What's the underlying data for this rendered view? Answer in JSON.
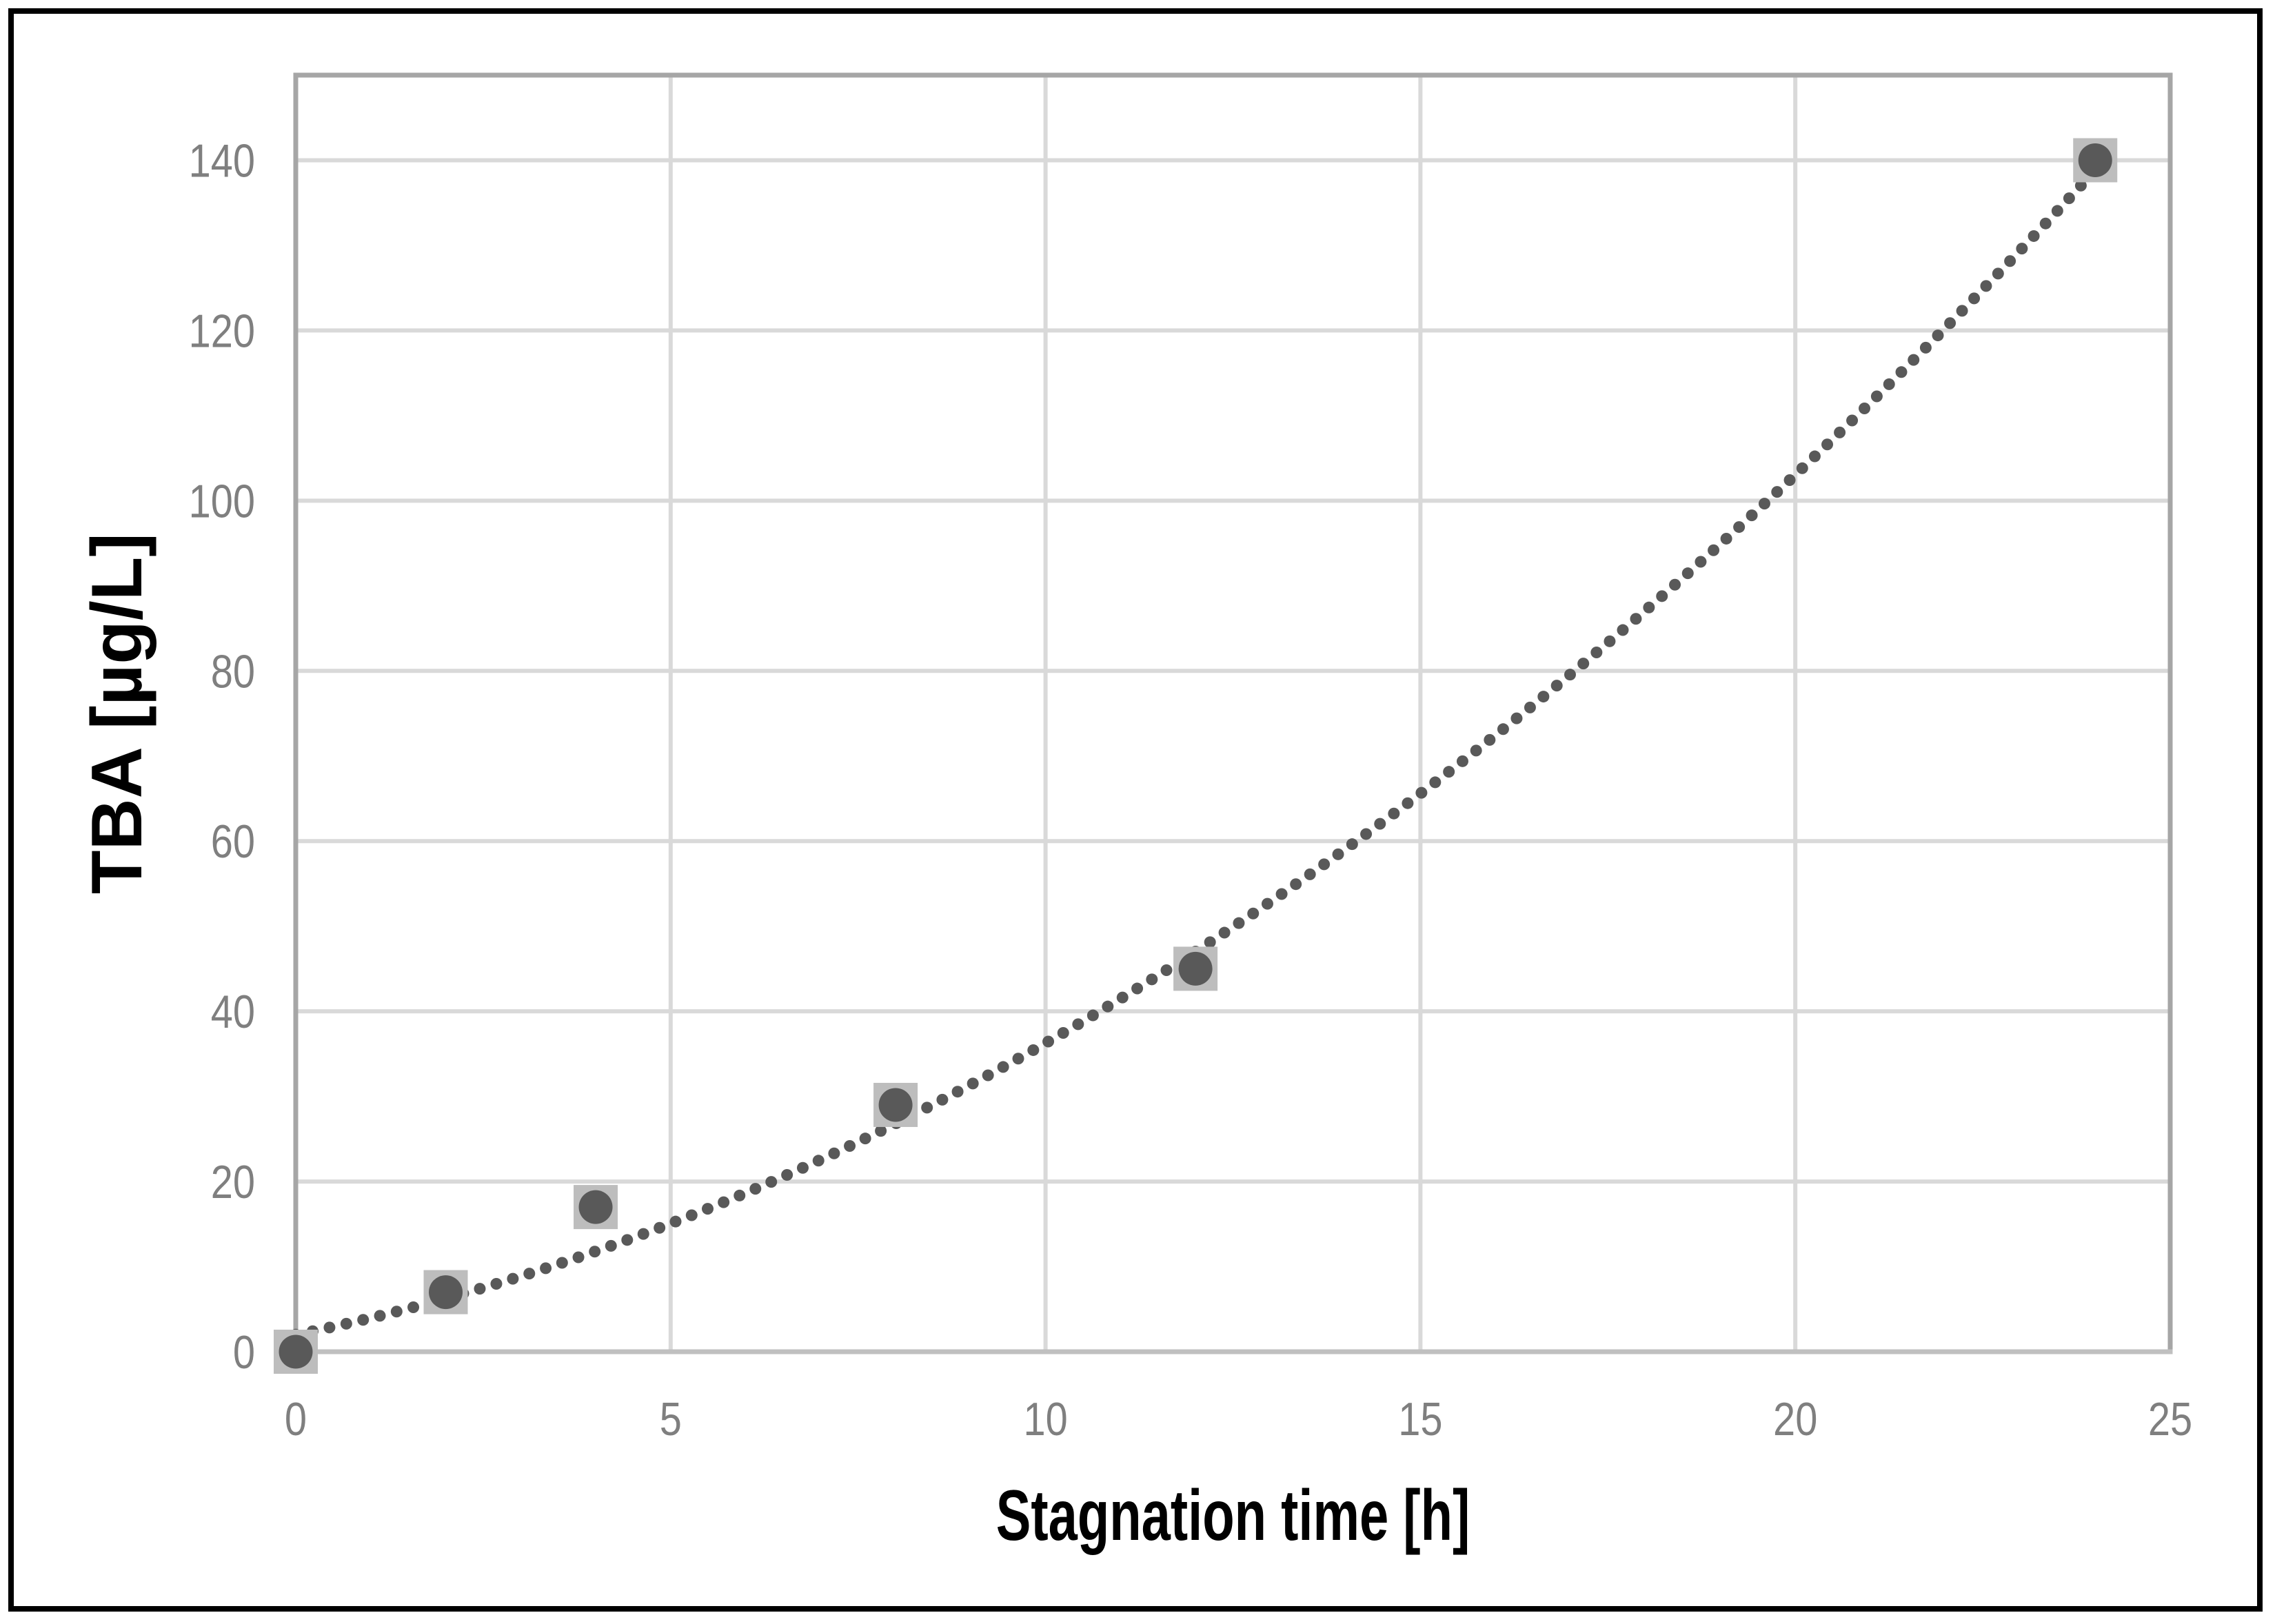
{
  "chart_data": {
    "type": "scatter",
    "xlabel": "Stagnation time [h]",
    "ylabel": "TBA [µg/L]",
    "xlim": [
      0,
      25
    ],
    "ylim": [
      0,
      150
    ],
    "x_ticks": [
      0,
      5,
      10,
      15,
      20,
      25
    ],
    "y_ticks": [
      0,
      20,
      40,
      60,
      80,
      100,
      120,
      140
    ],
    "grid": true,
    "legend": "none",
    "points": [
      {
        "x": 0,
        "y": 0
      },
      {
        "x": 2,
        "y": 7
      },
      {
        "x": 4,
        "y": 17
      },
      {
        "x": 8,
        "y": 29
      },
      {
        "x": 12,
        "y": 45
      },
      {
        "x": 24,
        "y": 140
      }
    ],
    "trendline": {
      "style": "dotted",
      "type": "quadratic",
      "a": 0.1626,
      "b": 1.8,
      "c": 2.0,
      "x_start": 0,
      "x_end": 23.85
    }
  },
  "colors": {
    "background": "#ffffff",
    "frame": "#000000",
    "grid": "#d9d9d9",
    "border": "#a6a6a6",
    "axis_line": "#c0c0c0",
    "tick_label": "#7f7f7f",
    "title": "#000000",
    "marker_square": "#bdbdbd",
    "marker_circle": "#595959",
    "trend_dot": "#595959"
  }
}
